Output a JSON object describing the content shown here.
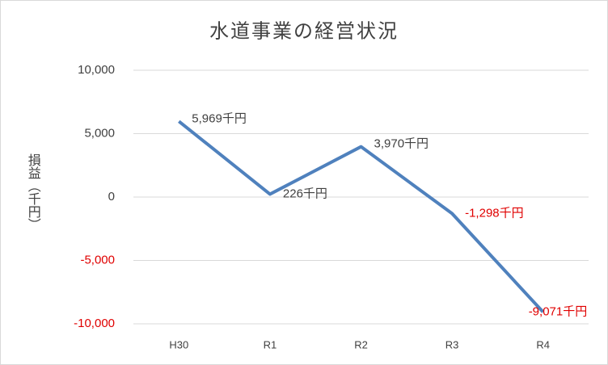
{
  "chart_data": {
    "type": "line",
    "title": "水道事業の経営状況",
    "y_label": "損益（千円）",
    "categories": [
      "H30",
      "R1",
      "R2",
      "R3",
      "R4"
    ],
    "series": [
      {
        "name": "損益",
        "color": "#4f81bd",
        "values": [
          5969,
          226,
          3970,
          -1298,
          -9071
        ],
        "value_labels": [
          "5,969千円",
          "226千円",
          "3,970千円",
          "-1,298千円",
          "-9,071千円"
        ]
      }
    ],
    "ylim": [
      -10000,
      10000
    ],
    "yticks": [
      {
        "value": -10000,
        "label": "-10,000"
      },
      {
        "value": -5000,
        "label": "-5,000"
      },
      0,
      {
        "value": 5000,
        "label": "5,000"
      },
      {
        "value": 10000,
        "label": "10,000"
      }
    ],
    "grid": true,
    "negative_color": "#e00000"
  }
}
